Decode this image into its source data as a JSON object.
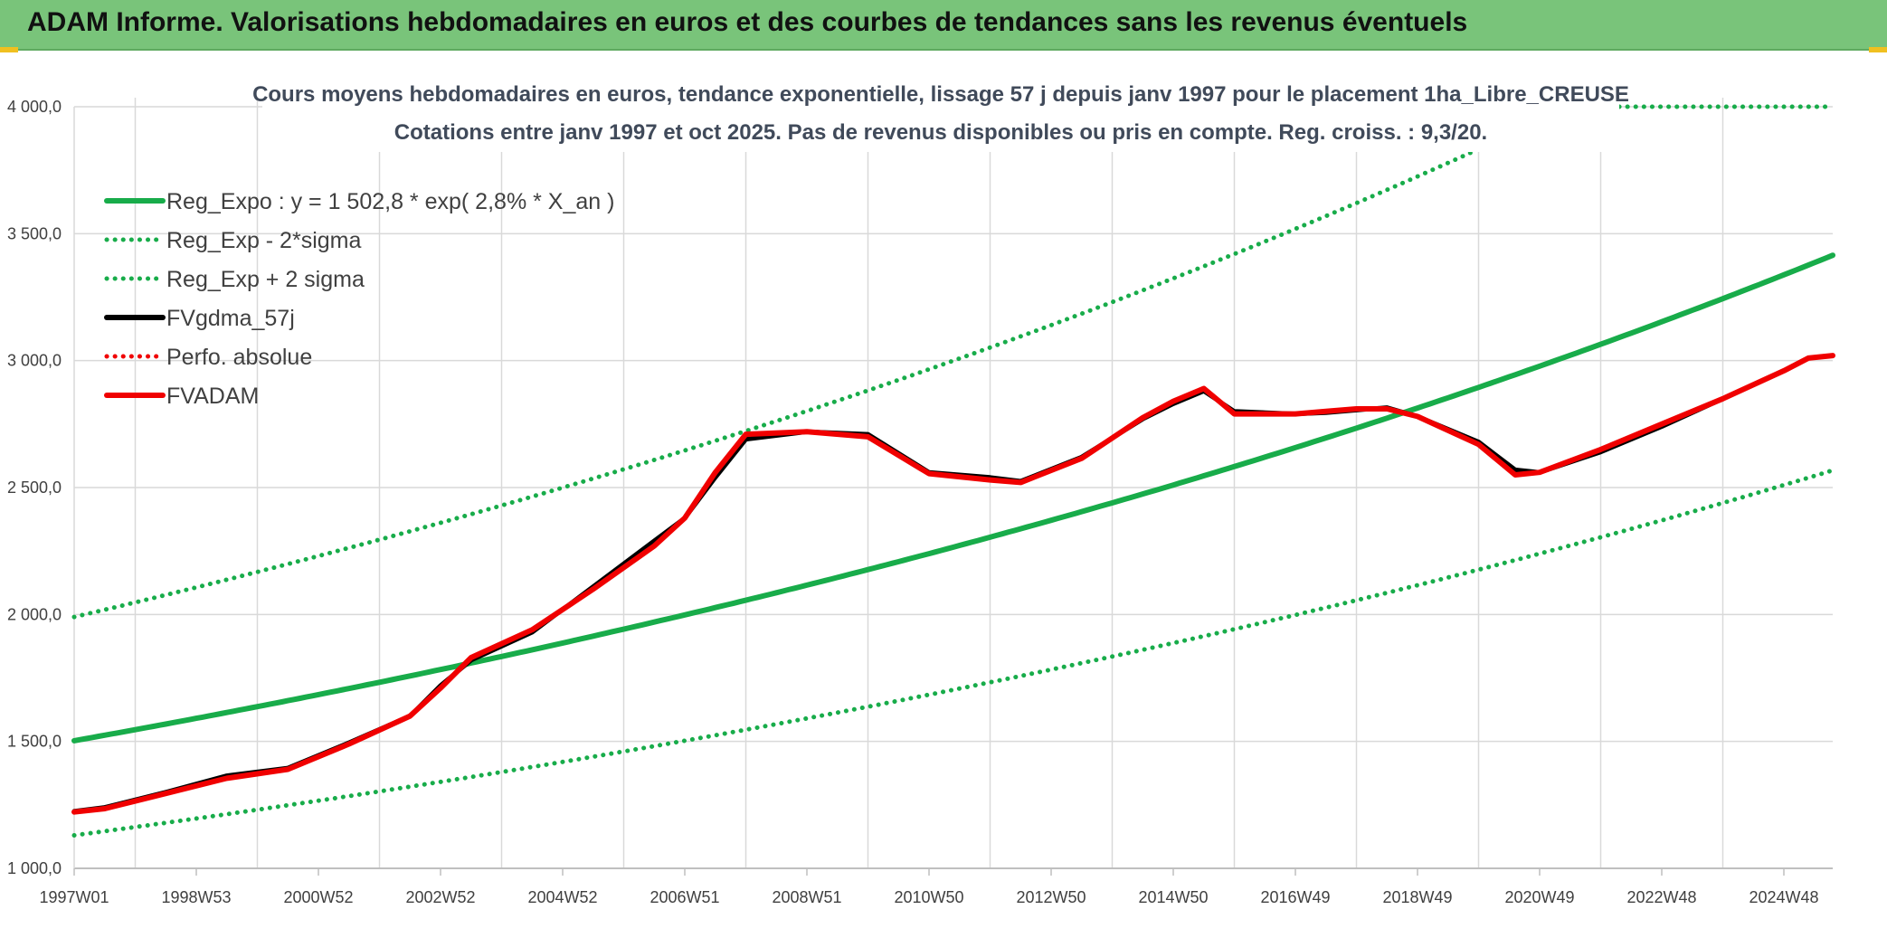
{
  "header": {
    "title": "ADAM Informe. Valorisations hebdomadaires en euros et des courbes de tendances sans les revenus éventuels"
  },
  "colors": {
    "header_bg": "#79c47a",
    "green": "#18ac4a",
    "red": "#f00000",
    "black": "#000000",
    "grid": "#d9d9d9"
  },
  "chart_data": {
    "type": "line",
    "title_line1": "Cours moyens hebdomadaires en euros, tendance exponentielle, lissage 57 j depuis janv 1997 pour le placement 1ha_Libre_CREUSE",
    "title_line2": "Cotations entre janv 1997 et oct 2025. Pas de revenus disponibles ou pris en compte. Reg. croiss. : 9,3/20.",
    "xlabel": "",
    "ylabel": "",
    "ylim": [
      1000,
      4000
    ],
    "xlim": [
      1997.0,
      2025.8
    ],
    "grid": true,
    "legend_position": "top-left",
    "y_ticks": [
      "1 000,0",
      "1 500,0",
      "2 000,0",
      "2 500,0",
      "3 000,0",
      "3 500,0",
      "4 000,0"
    ],
    "y_tick_values": [
      1000,
      1500,
      2000,
      2500,
      3000,
      3500,
      4000
    ],
    "x_ticks": [
      "1997W01",
      "1998W53",
      "2000W52",
      "2002W52",
      "2004W52",
      "2006W51",
      "2008W51",
      "2010W50",
      "2012W50",
      "2014W50",
      "2016W49",
      "2018W49",
      "2020W49",
      "2022W48",
      "2024W48"
    ],
    "x_tick_values": [
      1997.0,
      1999.0,
      2001.0,
      2003.0,
      2005.0,
      2007.0,
      2009.0,
      2011.0,
      2013.0,
      2015.0,
      2017.0,
      2019.0,
      2021.0,
      2023.0,
      2025.0
    ],
    "x_gridlines": [
      1998.0,
      2000.0,
      2002.0,
      2004.0,
      2006.0,
      2008.0,
      2010.0,
      2012.0,
      2014.0,
      2016.0,
      2018.0,
      2020.0,
      2022.0,
      2024.0
    ],
    "series": [
      {
        "name": "Reg_Expo : y = 1 502,8 * exp( 2,8% *  X_an )",
        "kind": "expo",
        "style": "solid",
        "color": "#18ac4a",
        "base": 1502.8,
        "rate": 0.0285,
        "x0": 1997.0
      },
      {
        "name": "Reg_Exp - 2*sigma",
        "kind": "expo",
        "style": "dotted",
        "color": "#18ac4a",
        "base": 1130,
        "rate": 0.0285,
        "x0": 1997.0
      },
      {
        "name": "Reg_Exp + 2 sigma",
        "kind": "expo",
        "style": "dotted",
        "color": "#18ac4a",
        "base": 1990,
        "rate": 0.0285,
        "x0": 1997.0,
        "cap": 4000
      },
      {
        "name": "FVgdma_57j",
        "kind": "points",
        "style": "solid",
        "color": "#000000",
        "x": [
          1997.0,
          1997.5,
          1998.5,
          1999.5,
          2000.5,
          2001.5,
          2002.5,
          2003.0,
          2003.5,
          2004.5,
          2005.5,
          2006.5,
          2007.0,
          2007.5,
          2008.0,
          2009.0,
          2010.0,
          2011.0,
          2012.0,
          2012.5,
          2013.5,
          2014.5,
          2015.0,
          2015.5,
          2016.0,
          2017.0,
          2017.5,
          2018.0,
          2018.5,
          2019.0,
          2020.0,
          2020.6,
          2021.0,
          2022.0,
          2023.0,
          2024.0,
          2025.0,
          2025.4,
          2025.8
        ],
        "values": [
          1225,
          1240,
          1300,
          1365,
          1395,
          1495,
          1600,
          1720,
          1820,
          1930,
          2110,
          2290,
          2380,
          2540,
          2690,
          2720,
          2710,
          2560,
          2540,
          2525,
          2620,
          2770,
          2830,
          2880,
          2800,
          2790,
          2795,
          2805,
          2815,
          2780,
          2680,
          2570,
          2560,
          2640,
          2740,
          2850,
          2960,
          3010,
          3020
        ]
      },
      {
        "name": "Perfo. absolue",
        "kind": "points",
        "style": "dotted",
        "color": "#f00000",
        "x": [],
        "values": []
      },
      {
        "name": "FVADAM",
        "kind": "points",
        "style": "solid",
        "color": "#f00000",
        "x": [
          1997.0,
          1997.5,
          1998.5,
          1999.5,
          2000.5,
          2001.5,
          2002.5,
          2003.0,
          2003.5,
          2004.5,
          2005.5,
          2006.5,
          2007.0,
          2007.5,
          2008.0,
          2009.0,
          2010.0,
          2011.0,
          2012.0,
          2012.5,
          2013.5,
          2014.5,
          2015.0,
          2015.5,
          2016.0,
          2017.0,
          2017.5,
          2018.0,
          2018.5,
          2019.0,
          2020.0,
          2020.6,
          2021.0,
          2022.0,
          2023.0,
          2024.0,
          2025.0,
          2025.4,
          2025.8
        ],
        "values": [
          1222,
          1235,
          1295,
          1355,
          1390,
          1490,
          1600,
          1710,
          1830,
          1940,
          2100,
          2270,
          2380,
          2560,
          2710,
          2720,
          2700,
          2555,
          2530,
          2520,
          2615,
          2775,
          2840,
          2890,
          2790,
          2790,
          2800,
          2810,
          2810,
          2780,
          2670,
          2550,
          2560,
          2650,
          2750,
          2850,
          2960,
          3010,
          3020
        ]
      }
    ]
  }
}
